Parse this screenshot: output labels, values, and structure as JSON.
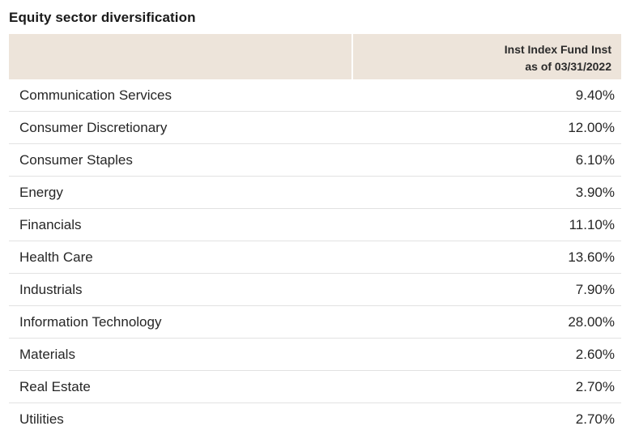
{
  "title": "Equity sector diversification",
  "header": {
    "fund_name": "Inst Index Fund Inst",
    "as_of": "as of 03/31/2022"
  },
  "rows": [
    {
      "sector": "Communication Services",
      "value": "9.40%"
    },
    {
      "sector": "Consumer Discretionary",
      "value": "12.00%"
    },
    {
      "sector": "Consumer Staples",
      "value": "6.10%"
    },
    {
      "sector": "Energy",
      "value": "3.90%"
    },
    {
      "sector": "Financials",
      "value": "11.10%"
    },
    {
      "sector": "Health Care",
      "value": "13.60%"
    },
    {
      "sector": "Industrials",
      "value": "7.90%"
    },
    {
      "sector": "Information Technology",
      "value": "28.00%"
    },
    {
      "sector": "Materials",
      "value": "2.60%"
    },
    {
      "sector": "Real Estate",
      "value": "2.70%"
    },
    {
      "sector": "Utilities",
      "value": "2.70%"
    }
  ],
  "colors": {
    "header_bg": "#ede4da",
    "divider": "#e2e2e2"
  }
}
